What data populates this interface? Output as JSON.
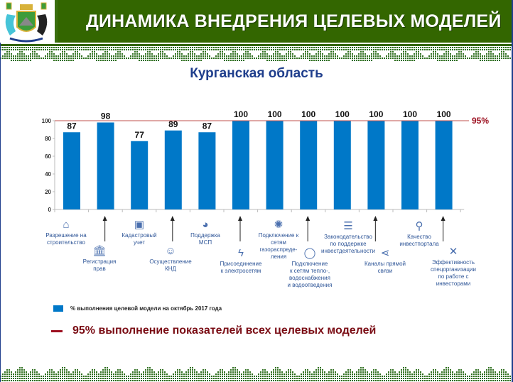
{
  "header": {
    "title": "ДИНАМИКА ВНЕДРЕНИЯ ЦЕЛЕВЫХ МОДЕЛЕЙ"
  },
  "subtitle": "Курганская область",
  "colors": {
    "bar": "#0078c8",
    "target_line": "#c0504d",
    "header": "#336600",
    "note": "#7a0c14"
  },
  "chart_data": {
    "type": "bar",
    "title": "Курганская область",
    "categories": [
      "Разрешение на строительство",
      "Регистрация прав",
      "Кадастровый учет",
      "Осуществление КНД",
      "Поддержка МСП",
      "Присоединение к электросетям",
      "Подключение к сетям газораспреде-ления",
      "Подключение к сетям тепло-, водоснабжения и водоотведения",
      "Законодательство по поддержке инвестдеятельности",
      "Каналы прямой связи",
      "Качество инвестпортала",
      "Эффективность спецорганизации по работе с инвесторами"
    ],
    "category_lines": [
      [
        "Разрешение на",
        "строительство"
      ],
      [
        "Регистрация",
        "прав"
      ],
      [
        "Кадастровый",
        "учет"
      ],
      [
        "Осуществление",
        "КНД"
      ],
      [
        "Поддержка",
        "МСП"
      ],
      [
        "Присоединение",
        "к электросетям"
      ],
      [
        "Подключение к",
        "сетям",
        "газораспреде-",
        "ления"
      ],
      [
        "Подключение",
        "к сетям тепло-,",
        "водоснабжения",
        "и водоотведения"
      ],
      [
        "Законодательство",
        "по поддержке",
        "инвестдеятельности"
      ],
      [
        "Каналы прямой",
        "связи"
      ],
      [
        "Качество",
        "инвестпортала"
      ],
      [
        "Эффективность",
        "спецорганизации",
        "по работе с",
        "инвесторами"
      ]
    ],
    "category_icons": [
      "house-icon",
      "building-icon",
      "cadastre-icon",
      "people-icon",
      "piggy-bank-icon",
      "lightning-icon",
      "gas-burner-icon",
      "water-drop-icon",
      "coins-icon",
      "share-icon",
      "location-pin-icon",
      "tools-icon"
    ],
    "values": [
      87,
      98,
      77,
      89,
      87,
      100,
      100,
      100,
      100,
      100,
      100,
      100
    ],
    "series_name": "% выполнения целевой модели на октябрь 2017 года",
    "ylim": [
      0,
      100
    ],
    "yticks": [
      0,
      20,
      40,
      60,
      80,
      100
    ],
    "target": {
      "value": 95,
      "label": "95%"
    },
    "legend": "bottom-left"
  },
  "legend_label": "% выполнения целевой модели на октябрь 2017 года",
  "note": "95% выполнение показателей всех целевых моделей"
}
